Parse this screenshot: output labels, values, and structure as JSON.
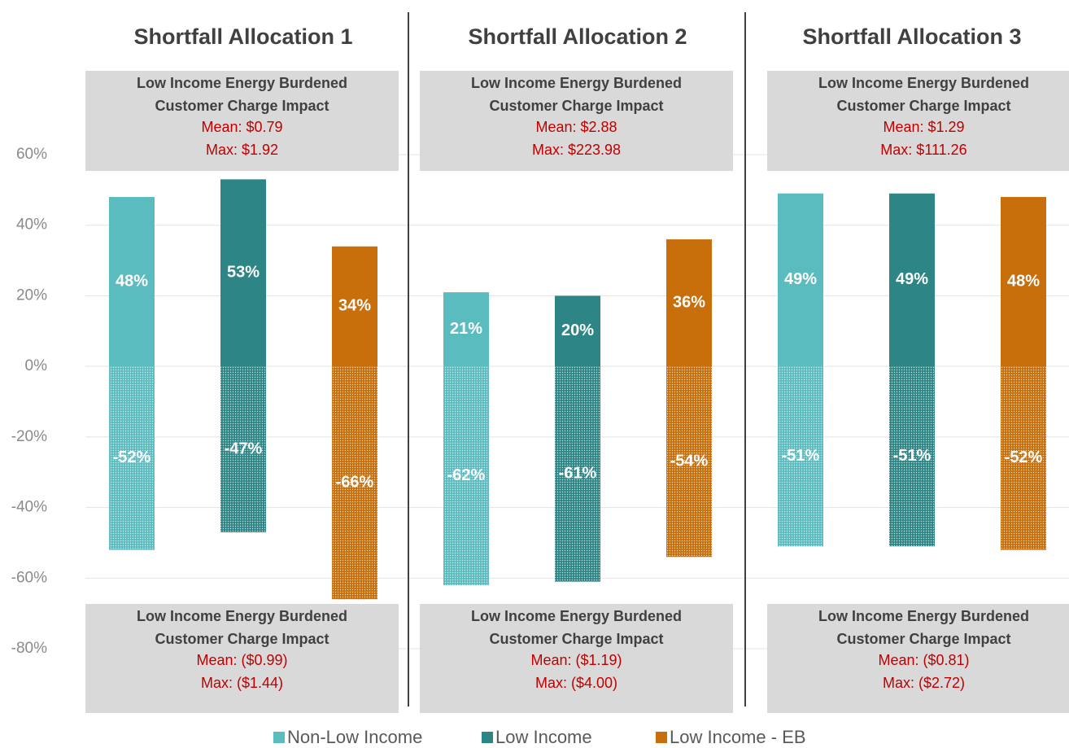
{
  "chart_data": {
    "type": "bar",
    "categories": [
      "Shortfall Allocation 1",
      "Shortfall Allocation 2",
      "Shortfall Allocation 3"
    ],
    "series": [
      {
        "name": "Non-Low Income",
        "color": "#5bbcc0",
        "values": [
          48,
          21,
          49
        ],
        "value_labels": [
          "48%",
          "21%",
          "49%"
        ],
        "negative_values": [
          -52,
          -62,
          -51
        ],
        "negative_value_labels": [
          "-52%",
          "-62%",
          "-51%"
        ]
      },
      {
        "name": "Low Income",
        "color": "#2e8585",
        "values": [
          53,
          20,
          49
        ],
        "value_labels": [
          "53%",
          "20%",
          "49%"
        ],
        "negative_values": [
          -47,
          -61,
          -51
        ],
        "negative_value_labels": [
          "-47%",
          "-61%",
          "-51%"
        ]
      },
      {
        "name": "Low Income - EB",
        "color": "#c86e0a",
        "values": [
          34,
          36,
          48
        ],
        "value_labels": [
          "34%",
          "36%",
          "48%"
        ],
        "negative_values": [
          -66,
          -54,
          -52
        ],
        "negative_value_labels": [
          "-66%",
          "-54%",
          "-52%"
        ]
      }
    ],
    "upper_boxes": [
      {
        "lines": [
          "Low Income Energy Burdened",
          "Customer Charge Impact"
        ],
        "mean": "Mean: $0.79",
        "max": "Max: $1.92"
      },
      {
        "lines": [
          "Low Income Energy Burdened",
          "Customer Charge Impact"
        ],
        "mean": "Mean: $2.88",
        "max": "Max: $223.98"
      },
      {
        "lines": [
          "Low Income Energy Burdened",
          "Customer Charge Impact"
        ],
        "mean": "Mean: $1.29",
        "max": "Max: $111.26"
      }
    ],
    "lower_boxes": [
      {
        "lines": [
          "Low Income Energy Burdened",
          "Customer Charge Impact"
        ],
        "mean": "Mean: ($0.99)",
        "max": "Max: ($1.44)"
      },
      {
        "lines": [
          "Low Income Energy Burdened",
          "Customer Charge Impact"
        ],
        "mean": "Mean: ($1.19)",
        "max": "Max: ($4.00)"
      },
      {
        "lines": [
          "Low Income Energy Burdened",
          "Customer Charge Impact"
        ],
        "mean": "Mean: ($0.81)",
        "max": "Max: ($2.72)"
      }
    ],
    "ylim": [
      -80,
      60
    ],
    "yticks": [
      {
        "value": -80,
        "label": "-80%"
      },
      {
        "value": -60,
        "label": "-60%"
      },
      {
        "value": -40,
        "label": "-40%"
      },
      {
        "value": -20,
        "label": "-20%"
      },
      {
        "value": 0,
        "label": "0%"
      },
      {
        "value": 20,
        "label": "20%"
      },
      {
        "value": 40,
        "label": "40%"
      },
      {
        "value": 60,
        "label": "60%"
      }
    ],
    "grid": true
  }
}
